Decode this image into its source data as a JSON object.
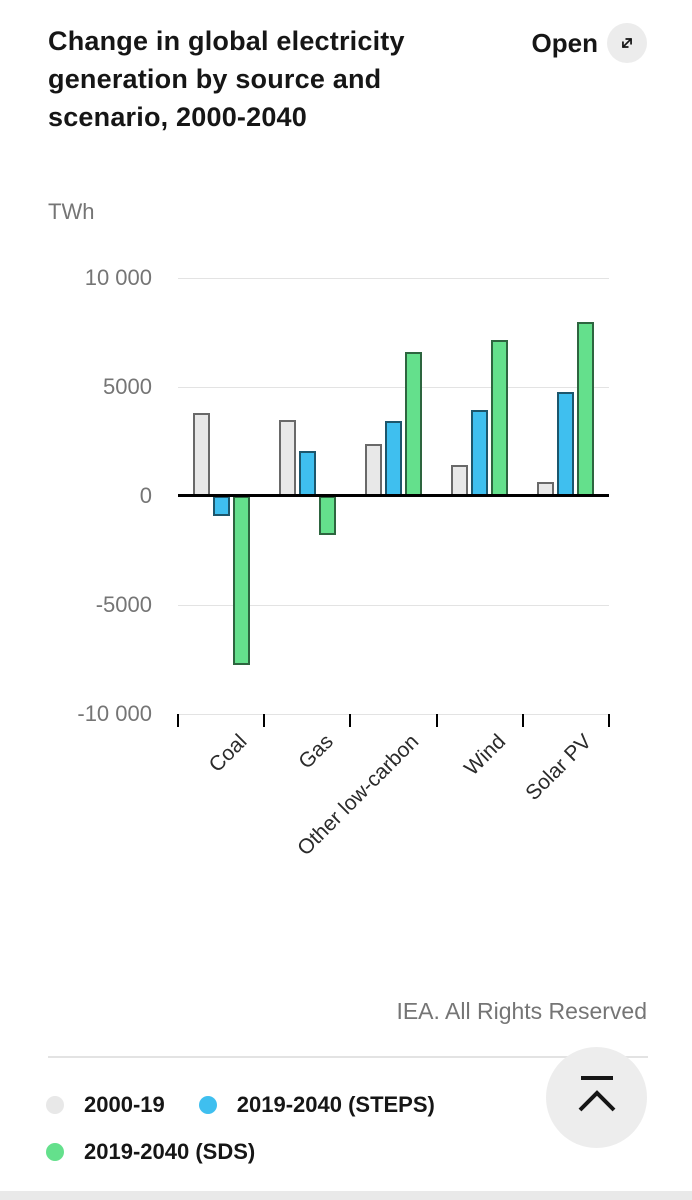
{
  "header": {
    "title": "Change in global electricity generation by source and scenario, 2000-2040",
    "open_button": {
      "label": "Open",
      "icon": "expand-diagonal-icon"
    }
  },
  "chart_data": {
    "type": "bar",
    "title": "Change in global electricity generation by source and scenario, 2000-2040",
    "ylabel": "TWh",
    "xlabel": "",
    "categories": [
      "Coal",
      "Gas",
      "Other low-carbon",
      "Wind",
      "Solar PV"
    ],
    "series": [
      {
        "name": "2000-19",
        "color": "#e8e8e8",
        "values": [
          3800,
          3500,
          2400,
          1400,
          650
        ]
      },
      {
        "name": "2019-2040 (STEPS)",
        "color": "#3fbfef",
        "values": [
          -900,
          2050,
          3450,
          3950,
          4750
        ]
      },
      {
        "name": "2019-2040 (SDS)",
        "color": "#64e08c",
        "values": [
          -7750,
          -1800,
          6600,
          7150,
          8000
        ]
      }
    ],
    "ylim": [
      -10000,
      10000
    ],
    "yticks": [
      {
        "value": 10000,
        "label": "10 000"
      },
      {
        "value": 5000,
        "label": "5000"
      },
      {
        "value": 0,
        "label": "0"
      },
      {
        "value": -5000,
        "label": "-5000"
      },
      {
        "value": -10000,
        "label": "-10 000"
      }
    ],
    "grid": true,
    "legend_position": "bottom"
  },
  "footer": {
    "copyright": "IEA. All Rights Reserved",
    "scroll_top_icon": "scroll-to-top-icon"
  }
}
